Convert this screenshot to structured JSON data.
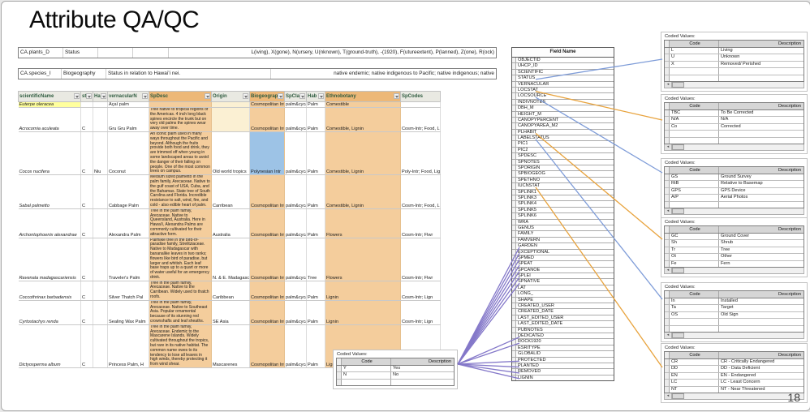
{
  "slide": {
    "title": "Attribute QA/QC",
    "page_number": "18"
  },
  "definition_bars": [
    {
      "cells": [
        "CA.plants_D",
        "Status",
        "",
        ""
      ],
      "right_text": "L(iving), X(gone), N(ursery, U(nknown), T(ground-truth), -(1920), F(utureextent), P(lanned), Z(one), R(ock)"
    },
    {
      "cells": [
        "CA.species_I",
        "Biogeography",
        "Status in relation to Hawaiʻi nei."
      ],
      "right_text": "native endemic; native indigenous to Pacific; native indigenous; native"
    }
  ],
  "species_table": {
    "headers": [
      {
        "label": "scientificName",
        "filter": true,
        "tan": false
      },
      {
        "label": "st",
        "filter": true,
        "tan": false
      },
      {
        "label": "Ha",
        "filter": true,
        "tan": false
      },
      {
        "label": "vernacularN",
        "filter": true,
        "tan": false
      },
      {
        "label": "SpDesc",
        "filter": true,
        "tan": true
      },
      {
        "label": "Origin",
        "filter": true,
        "tan": false
      },
      {
        "label": "Biogeograp",
        "filter": true,
        "tan": true
      },
      {
        "label": "SpClass T",
        "filter": true,
        "tan": false
      },
      {
        "label": "Hab",
        "filter": true,
        "tan": false
      },
      {
        "label": "Ethnobotany",
        "filter": true,
        "tan": true
      },
      {
        "label": "SpCodes",
        "filter": false,
        "tan": false
      }
    ],
    "rows": [
      {
        "cells": [
          "Euterpe oleracea",
          "",
          "",
          "Açaí palm",
          "",
          "",
          "Cosmopolitan Intr",
          "palm&cycad",
          "Palm",
          "Comestible",
          ""
        ],
        "highlights": {
          "0": "yellow",
          "5": "cream"
        }
      },
      {
        "cells": [
          "Acrocomia aculeata",
          "C",
          "",
          "Gru Gru Palm",
          "Tree native to tropical regions of the Americas. 4 inch long black spines encircle the trunk but on very old palms the spines wear away over time.",
          "",
          "Cosmopolitan Intr",
          "palm&cycad",
          "Palm",
          "Comestible, Lignin",
          "Cosm-Intr; Food, Lign"
        ],
        "highlights": {
          "5": "cream"
        }
      },
      {
        "cells": [
          "Cocos nucifera",
          "C",
          "Niu",
          "Coconut",
          "An iconic palm used in many ways throughout the Pacific and beyond.  Although the fruits provide both food and drink, they are trimmed off when young in some landscaped areas to avoid the danger of their falling on people.  One of the most common trees on campus.",
          "Old world tropics",
          "Polynesian Intr",
          "palm&cycad",
          "Palm",
          "Comestible, Lignin",
          "Poly-Intr; Food, Lign; Lei"
        ],
        "highlights": {
          "6": "blue"
        }
      },
      {
        "cells": [
          "Sabal palmetto",
          "C",
          "",
          "Cabbage Palm",
          "Medium sized palmetto in the palm family, Arecaceae.  Native to the gulf coast of USA, Cuba, and the Bahamas.  State tree of South Carolina and Florida. Incredible resistance to salt, wind, fire, and cold - also edible heart of palm.",
          "Carribean",
          "Cosmopolitan Intr",
          "palm&cycad",
          "Palm",
          "Comestible, Lignin",
          "Cosm-Intr; Food, Lign"
        ],
        "highlights": {}
      },
      {
        "cells": [
          "Archontophoenix alexandrae",
          "C",
          "",
          "Alexandra Palm",
          "Tree in the palm family, Arecaceae. Native to Queensland, Australia. Here in Hawai'i, Alexandra Palms are commonly cultivated for their attractive form.",
          "Australia",
          "Cosmopolitan Intr",
          "palm&cycad",
          "Palm",
          "Flowers",
          "Cosm-Intr; Flwr"
        ],
        "highlights": {}
      },
      {
        "cells": [
          "Ravenala madagascariensis",
          "C",
          "",
          "Traveler's Palm",
          "Palmlike tree in the bird-of-paradise family, Strelitziaceae.  Native to Madagascar with bananalike leaves in two ranks; flowers like bird of paradise, but larger and whitish. Each leaf base traps up to a quart or more of water useful for an emergency drink.",
          "N. & E. Madagasc",
          "Cosmopolitan Intr",
          "palm&cycad",
          "Tree",
          "Flowers",
          "Cosm-Intr; Flwr"
        ],
        "highlights": {}
      },
      {
        "cells": [
          "Coccothrinax barbadensis",
          "C",
          "",
          "Silver Thatch Pal",
          "Tree in the palm family, Arecaceae. Native to the Carribean. Widely used to thatch roofs.",
          "Caribbean",
          "Cosmopolitan Intr",
          "palm&cycad",
          "Palm",
          "Lignin",
          "Cosm-Intr; Lign"
        ],
        "highlights": {}
      },
      {
        "cells": [
          "Cyrtostachys renda",
          "C",
          "",
          "Sealing Wax Palm",
          "Tree in the palm family, Arecaceae. Native to Southeast Asia. Popular ornamental because of its stunning red crownshafts and leaf sheaths.",
          "SE Asia",
          "Cosmopolitan Intr",
          "palm&cycad",
          "Palm",
          "Lignin",
          "Cosm-Intr; Lign"
        ],
        "highlights": {}
      },
      {
        "cells": [
          "Dictyosperma album",
          "C",
          "",
          "Princess Palm, H",
          "Tree in the palm family, Arecaceae. Endemic to the Mascarene Islands. Widely cultivated throughout the tropics, but rare in its native habitat.  The common name owes to its tendency to lose all leaves in high winds, thereby protecting it from wind shear.",
          "Mascarenes",
          "Cosmopolitan Intr",
          "palm&cycad",
          "Palm",
          "Lignin",
          "Cosm-Intr; Lign"
        ],
        "highlights": {}
      }
    ]
  },
  "field_list": {
    "title": "Field Name",
    "fields": [
      "OBJECTID",
      "UHCP_ID",
      "SCIENTIFIC",
      "STATUS",
      "VERNACULAR",
      "LOCSTAT",
      "LOCSOURCE",
      "INDIVNOTES",
      "DBH_M",
      "HEIGHT_M",
      "CANOPYPERCENT",
      "CANOPYAREA_M2",
      "PLHABIT",
      "LABELSTATUS",
      "PIC1",
      "PIC2",
      "SPDESC",
      "SPNOTES",
      "SPORIGIN",
      "SPBIOGEOG",
      "SPETHNO",
      "IUCNSTAT",
      "SPLINK1",
      "SPLINK3",
      "SPLINK4",
      "SPLINK5",
      "SPLINK6",
      "WRA",
      "GENUS",
      "FAMILY",
      "FAMVERN",
      "GARDEN",
      "EXCEPTIONAL",
      "SPMED",
      "SPEAT",
      "SPCANOE",
      "SPLEI",
      "SPNATIVE",
      "LAT",
      "LONG_",
      "SHAPE",
      "CREATED_USER",
      "CREATED_DATE",
      "LAST_EDITED_USER",
      "LAST_EDITED_DATE",
      "PUBNOTES",
      "DEDICATED",
      "ROCK1920",
      "ESRITYPE",
      "GLOBALID",
      "PROTECTED",
      "PLANTED",
      "REMOVED",
      "LIGNIN"
    ]
  },
  "coded_value_tables": {
    "label": "Coded Values:",
    "columns": [
      "Code",
      "Description"
    ],
    "bottom_center": {
      "rows": [
        [
          "Y",
          "Yes"
        ],
        [
          "N",
          "No"
        ]
      ]
    },
    "right": [
      {
        "rows": [
          [
            "L",
            "Living"
          ],
          [
            "U",
            "Unknown"
          ],
          [
            "X",
            "Removed/ Perished"
          ]
        ]
      },
      {
        "rows": [
          [
            "TBC",
            "To Be Corrected"
          ],
          [
            "N/A",
            "N/A"
          ],
          [
            "Co",
            "Corrected"
          ]
        ]
      },
      {
        "rows": [
          [
            "GS",
            "Ground Survey"
          ],
          [
            "RtB",
            "Relative to Basemap"
          ],
          [
            "GPS",
            "GPS Device"
          ],
          [
            "A/P",
            "Aerial Photos"
          ]
        ]
      },
      {
        "rows": [
          [
            "GC",
            "Ground Cover"
          ],
          [
            "Sh",
            "Shrub"
          ],
          [
            "Tr",
            "Tree"
          ],
          [
            "Ot",
            "Other"
          ],
          [
            "Fe",
            "Fern"
          ]
        ]
      },
      {
        "rows": [
          [
            "In",
            "Installed"
          ],
          [
            "Ta",
            "Target"
          ],
          [
            "OS",
            "Old Sign"
          ]
        ]
      },
      {
        "rows": [
          [
            "CR",
            "CR - Critically Endangered"
          ],
          [
            "DD",
            "DD - Data Deficient"
          ],
          [
            "EN",
            "EN - Endangered"
          ],
          [
            "LC",
            "LC - Least Concern"
          ],
          [
            "NT",
            "NT - Near Threatened"
          ]
        ]
      }
    ]
  },
  "connections": {
    "colors": {
      "blue": "#7e9cd8",
      "orange": "#e8a33d",
      "purple": "#8478c9"
    },
    "field_to_right_table": [
      {
        "field": "STATUS",
        "table": 0,
        "color": "blue"
      },
      {
        "field": "LOCSTAT",
        "table": 1,
        "color": "orange"
      },
      {
        "field": "LOCSOURCE",
        "table": 2,
        "color": "blue"
      },
      {
        "field": "PLHABIT",
        "table": 3,
        "color": "orange"
      },
      {
        "field": "LABELSTATUS",
        "table": 4,
        "color": "blue"
      },
      {
        "field": "IUCNSTAT",
        "table": 5,
        "color": "orange"
      }
    ],
    "yes_no_fields": [
      "GARDEN",
      "EXCEPTIONAL",
      "SPMED",
      "SPEAT",
      "SPCANOE",
      "SPLEI",
      "SPNATIVE",
      "DEDICATED",
      "ROCK1920",
      "PROTECTED",
      "PLANTED",
      "REMOVED",
      "LIGNIN"
    ]
  }
}
